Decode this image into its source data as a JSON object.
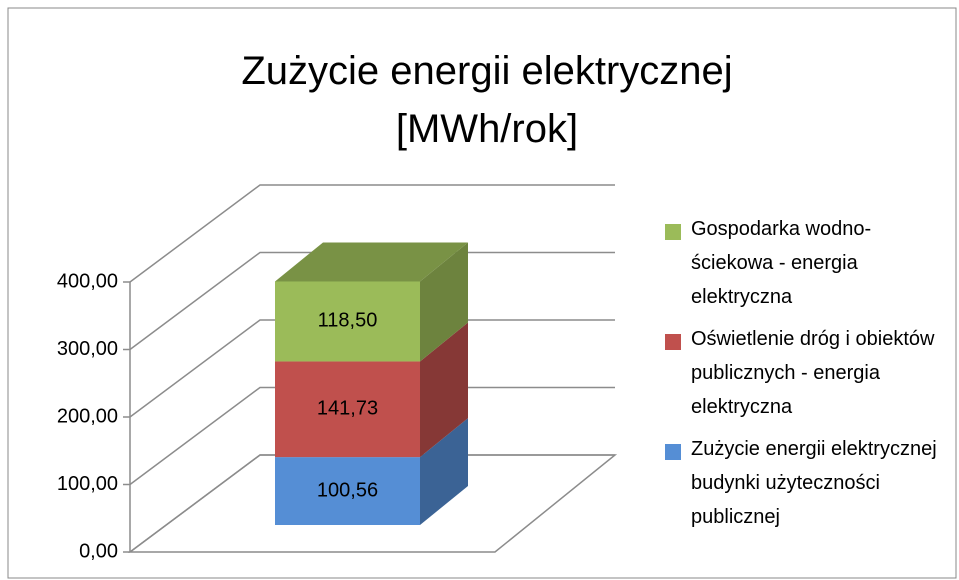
{
  "chart_data": {
    "type": "bar3d_stacked",
    "title": "Zużycie energii elektrycznej [MWh/rok]",
    "categories": [
      null
    ],
    "series": [
      {
        "name": "Zużycie energii elektrycznej budynki użyteczności publicznej",
        "color": "#558ed5",
        "values": [
          100.56
        ],
        "value_labels": [
          "100,56"
        ]
      },
      {
        "name": "Oświetlenie dróg i obiektów publicznych - energia elektryczna",
        "color": "#c0504d",
        "values": [
          141.73
        ],
        "value_labels": [
          "141,73"
        ]
      },
      {
        "name": "Gospodarka wodno-ściekowa - energia elektryczna",
        "color": "#9bbb59",
        "values": [
          118.5
        ],
        "value_labels": [
          "118,50"
        ]
      }
    ],
    "ylim": [
      0,
      400
    ],
    "yticks": [
      {
        "value": 0,
        "label": "0,00"
      },
      {
        "value": 100,
        "label": "100,00"
      },
      {
        "value": 200,
        "label": "200,00"
      },
      {
        "value": 300,
        "label": "300,00"
      },
      {
        "value": 400,
        "label": "400,00"
      }
    ],
    "grid": true,
    "legend": "right"
  }
}
